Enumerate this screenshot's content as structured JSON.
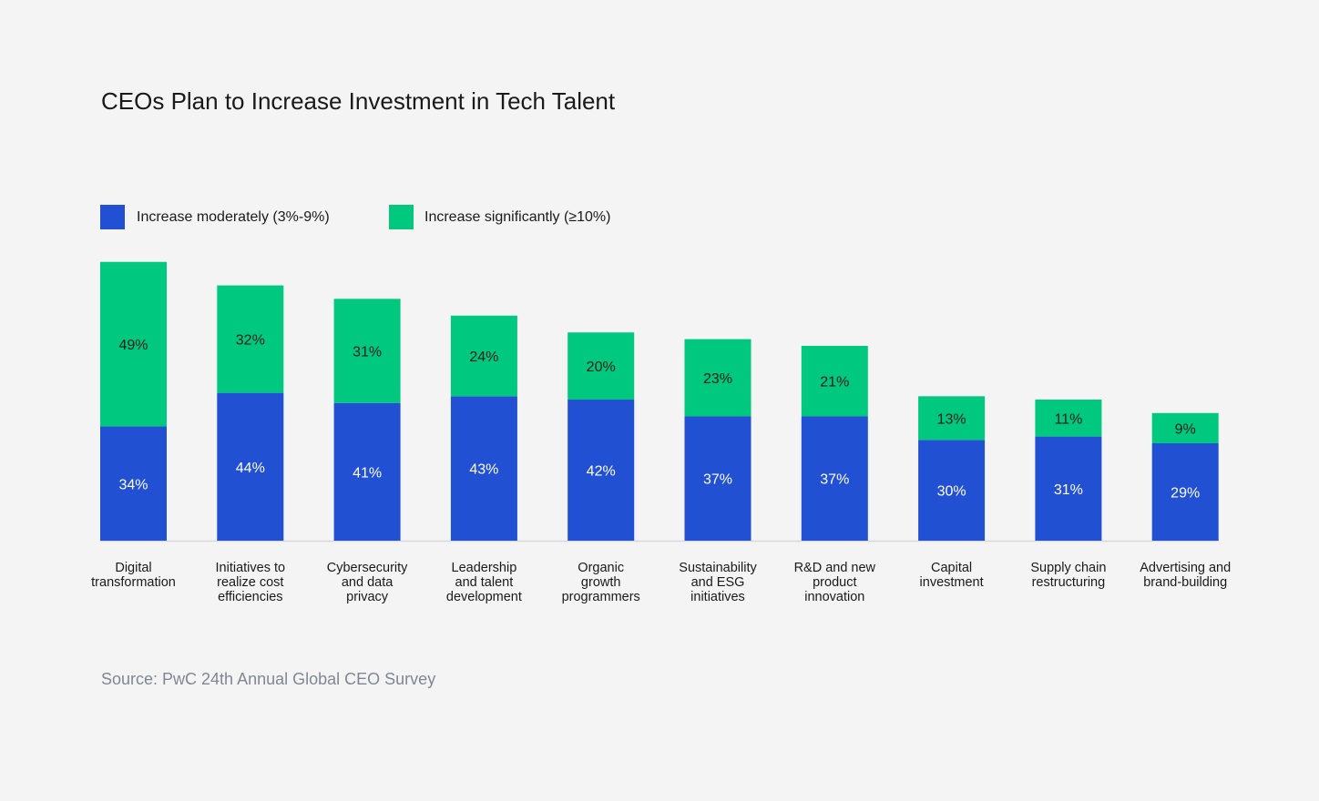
{
  "chart_data": {
    "type": "bar",
    "stacked": true,
    "title": "CEOs Plan to Increase Investment in Tech Talent",
    "xlabel": "",
    "ylabel": "",
    "ylim": [
      0,
      83
    ],
    "grid": false,
    "legend_position": "top-left",
    "categories": [
      [
        "Digital",
        "transformation"
      ],
      [
        "Initiatives to",
        "realize cost",
        "efficiencies"
      ],
      [
        "Cybersecurity",
        "and data",
        "privacy"
      ],
      [
        "Leadership",
        "and talent",
        "development"
      ],
      [
        "Organic",
        "growth",
        "programmers"
      ],
      [
        "Sustainability",
        "and ESG",
        "initiatives"
      ],
      [
        "R&D and new",
        "product",
        "innovation"
      ],
      [
        "Capital",
        "investment"
      ],
      [
        "Supply chain",
        "restructuring"
      ],
      [
        "Advertising and",
        "brand-building"
      ]
    ],
    "series": [
      {
        "name": "Increase moderately (3%-9%)",
        "color": "#2250d3",
        "label_color": "#ffffff",
        "values": [
          34,
          44,
          41,
          43,
          42,
          37,
          37,
          30,
          31,
          29
        ],
        "labels": [
          "34%",
          "44%",
          "41%",
          "43%",
          "42%",
          "37%",
          "37%",
          "30%",
          "31%",
          "29%"
        ]
      },
      {
        "name": "Increase significantly (≥10%)",
        "color": "#00c97f",
        "label_color": "#1a1a1a",
        "values": [
          49,
          32,
          31,
          24,
          20,
          23,
          21,
          13,
          11,
          9
        ],
        "labels": [
          "49%",
          "32%",
          "31%",
          "24%",
          "20%",
          "23%",
          "21%",
          "13%",
          "11%",
          "9%"
        ]
      }
    ]
  },
  "source": "Source: PwC 24th Annual Global CEO Survey"
}
